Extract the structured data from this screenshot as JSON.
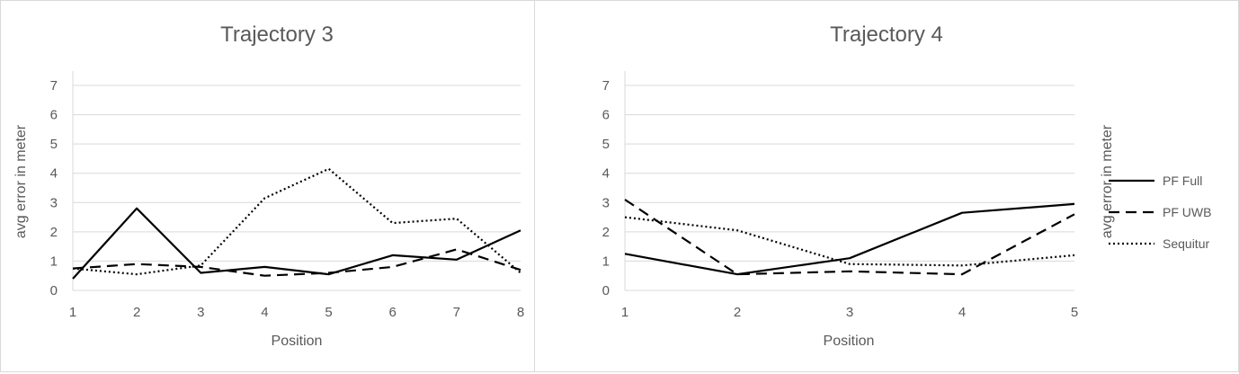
{
  "colors": {
    "series": "#000000",
    "grid": "#d9d9d9",
    "text": "#595959"
  },
  "legend": [
    {
      "name": "PF Full",
      "dash": "solid"
    },
    {
      "name": "PF UWB",
      "dash": "dashed"
    },
    {
      "name": "Sequitur",
      "dash": "dotted"
    }
  ],
  "chart_data": [
    {
      "type": "line",
      "title": "Trajectory 3",
      "xlabel": "Position",
      "ylabel": "avg error in meter",
      "x": [
        1,
        2,
        3,
        4,
        5,
        6,
        7,
        8
      ],
      "x_tick_labels": [
        "1",
        "2",
        "3",
        "4",
        "5",
        "6",
        "7",
        "8"
      ],
      "y_tick_labels": [
        "0",
        "1",
        "2",
        "3",
        "4",
        "5",
        "6",
        "7"
      ],
      "ylim": [
        0,
        7
      ],
      "grid": true,
      "series": [
        {
          "name": "PF Full",
          "values": [
            0.4,
            2.8,
            0.6,
            0.8,
            0.55,
            1.2,
            1.05,
            2.05
          ]
        },
        {
          "name": "PF UWB",
          "values": [
            0.75,
            0.9,
            0.8,
            0.5,
            0.6,
            0.8,
            1.4,
            0.7
          ]
        },
        {
          "name": "Sequitur",
          "values": [
            0.75,
            0.55,
            0.85,
            3.15,
            4.15,
            2.3,
            2.45,
            0.6
          ]
        }
      ]
    },
    {
      "type": "line",
      "title": "Trajectory 4",
      "xlabel": "Position",
      "ylabel": "avg error in meter",
      "x": [
        1,
        2,
        3,
        4,
        5
      ],
      "x_tick_labels": [
        "1",
        "2",
        "3",
        "4",
        "5"
      ],
      "y_tick_labels": [
        "0",
        "1",
        "2",
        "3",
        "4",
        "5",
        "6",
        "7"
      ],
      "ylim": [
        0,
        7
      ],
      "grid": true,
      "legend_position": "right",
      "series": [
        {
          "name": "PF Full",
          "values": [
            1.25,
            0.55,
            1.1,
            2.65,
            2.95
          ]
        },
        {
          "name": "PF UWB",
          "values": [
            3.1,
            0.55,
            0.65,
            0.55,
            2.6
          ]
        },
        {
          "name": "Sequitur",
          "values": [
            2.5,
            2.05,
            0.9,
            0.85,
            1.2
          ]
        }
      ]
    }
  ]
}
